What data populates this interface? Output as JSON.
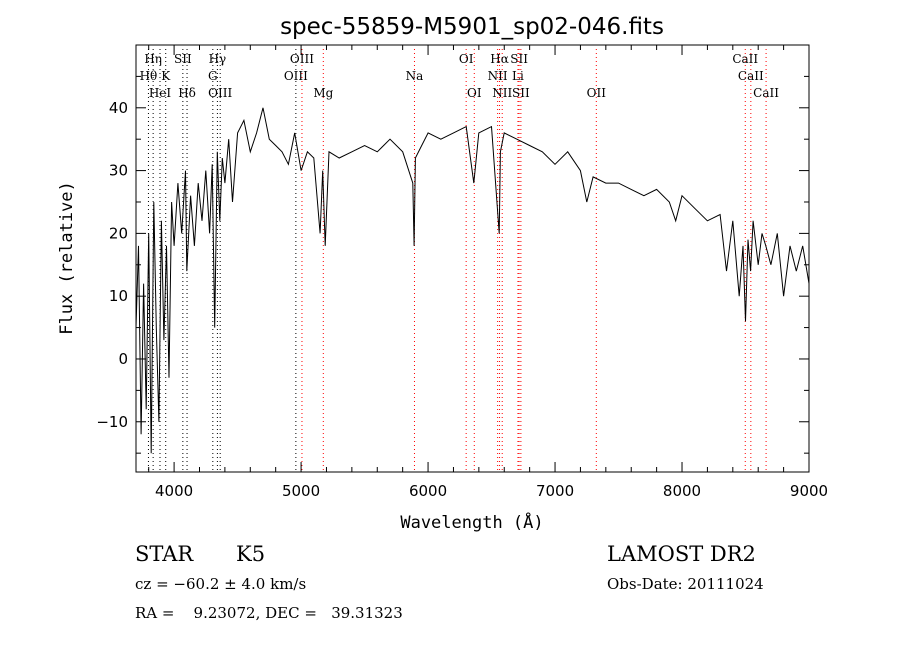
{
  "chart_data": {
    "type": "line",
    "title": "spec-55859-M5901_sp02-046.fits",
    "xlabel": "Wavelength (Å)",
    "ylabel": "Flux (relative)",
    "xlim": [
      3700,
      9000
    ],
    "ylim": [
      -18,
      50
    ],
    "x_ticks": [
      4000,
      5000,
      6000,
      7000,
      8000,
      9000
    ],
    "x_tick_labels": [
      "4000",
      "5000",
      "6000",
      "7000",
      "8000",
      "9000"
    ],
    "y_ticks": [
      -10,
      0,
      10,
      20,
      30,
      40
    ],
    "y_tick_labels": [
      "−10",
      "0",
      "10",
      "20",
      "30",
      "40"
    ],
    "grid": false,
    "series": [
      {
        "color": "#000000",
        "x": [
          3700,
          3720,
          3740,
          3760,
          3780,
          3800,
          3820,
          3840,
          3860,
          3880,
          3900,
          3920,
          3940,
          3960,
          3980,
          4000,
          4030,
          4060,
          4090,
          4100,
          4130,
          4160,
          4190,
          4220,
          4250,
          4280,
          4300,
          4320,
          4340,
          4360,
          4380,
          4400,
          4430,
          4460,
          4500,
          4550,
          4600,
          4650,
          4700,
          4750,
          4800,
          4850,
          4900,
          4950,
          5000,
          5050,
          5100,
          5150,
          5170,
          5190,
          5220,
          5300,
          5400,
          5500,
          5600,
          5700,
          5800,
          5880,
          5890,
          5900,
          5950,
          6000,
          6100,
          6200,
          6300,
          6360,
          6400,
          6500,
          6560,
          6570,
          6600,
          6700,
          6800,
          6900,
          7000,
          7100,
          7200,
          7250,
          7300,
          7400,
          7500,
          7600,
          7700,
          7800,
          7900,
          7950,
          8000,
          8100,
          8200,
          8300,
          8350,
          8400,
          8450,
          8480,
          8500,
          8520,
          8540,
          8560,
          8600,
          8630,
          8660,
          8700,
          8750,
          8800,
          8850,
          8900,
          8950,
          9000
        ],
        "y": [
          5,
          18,
          -12,
          12,
          -8,
          20,
          -15,
          25,
          5,
          -10,
          22,
          3,
          18,
          -3,
          25,
          18,
          28,
          20,
          30,
          14,
          26,
          18,
          28,
          22,
          30,
          20,
          31,
          5,
          33,
          22,
          32,
          28,
          35,
          25,
          36,
          38,
          33,
          36,
          40,
          35,
          34,
          33,
          31,
          36,
          30,
          33,
          32,
          20,
          30,
          18,
          33,
          32,
          33,
          34,
          33,
          35,
          33,
          28,
          18,
          32,
          34,
          36,
          35,
          36,
          37,
          28,
          36,
          37,
          20,
          33,
          36,
          35,
          34,
          33,
          31,
          33,
          30,
          25,
          29,
          28,
          28,
          27,
          26,
          27,
          25,
          22,
          26,
          24,
          22,
          23,
          14,
          22,
          10,
          18,
          6,
          19,
          14,
          22,
          15,
          20,
          18,
          15,
          20,
          10,
          18,
          14,
          18,
          12
        ]
      }
    ],
    "lines": [
      {
        "label": "Hη",
        "x": 3835,
        "row": 0
      },
      {
        "label": "Hθ",
        "x": 3798,
        "row": 1
      },
      {
        "label": "K",
        "x": 3934,
        "row": 1
      },
      {
        "label": "HeI",
        "x": 3889,
        "row": 2
      },
      {
        "label": "SII",
        "x": 4069,
        "row": 0
      },
      {
        "label": "Hδ",
        "x": 4102,
        "row": 2
      },
      {
        "label": "Hγ",
        "x": 4341,
        "row": 0
      },
      {
        "label": "G",
        "x": 4305,
        "row": 1
      },
      {
        "label": "OIII",
        "x": 4363,
        "row": 2
      },
      {
        "label": "OIII",
        "x": 5007,
        "row": 0
      },
      {
        "label": "OIII",
        "x": 4959,
        "row": 1
      },
      {
        "label": "Mg",
        "x": 5175,
        "row": 2
      },
      {
        "label": "Na",
        "x": 5893,
        "row": 1
      },
      {
        "label": "OI",
        "x": 6300,
        "row": 0
      },
      {
        "label": "OI",
        "x": 6364,
        "row": 2
      },
      {
        "label": "Hα",
        "x": 6563,
        "row": 0
      },
      {
        "label": "SII",
        "x": 6717,
        "row": 0
      },
      {
        "label": "NII",
        "x": 6548,
        "row": 1
      },
      {
        "label": "Li",
        "x": 6708,
        "row": 1
      },
      {
        "label": "NII",
        "x": 6584,
        "row": 2
      },
      {
        "label": "SII",
        "x": 6731,
        "row": 2
      },
      {
        "label": "OII",
        "x": 7325,
        "row": 2
      },
      {
        "label": "CaII",
        "x": 8498,
        "row": 0
      },
      {
        "label": "CaII",
        "x": 8542,
        "row": 1
      },
      {
        "label": "CaII",
        "x": 8662,
        "row": 2
      }
    ],
    "line_colors": [
      "#000000",
      "#ff0000"
    ]
  },
  "footer": {
    "class": "STAR",
    "subclass": "K5",
    "survey": "LAMOST DR2",
    "cz": "cz = −60.2 ± 4.0 km/s",
    "obs_date": "Obs-Date: 20111024",
    "coords": "RA =    9.23072, DEC =   39.31323"
  }
}
